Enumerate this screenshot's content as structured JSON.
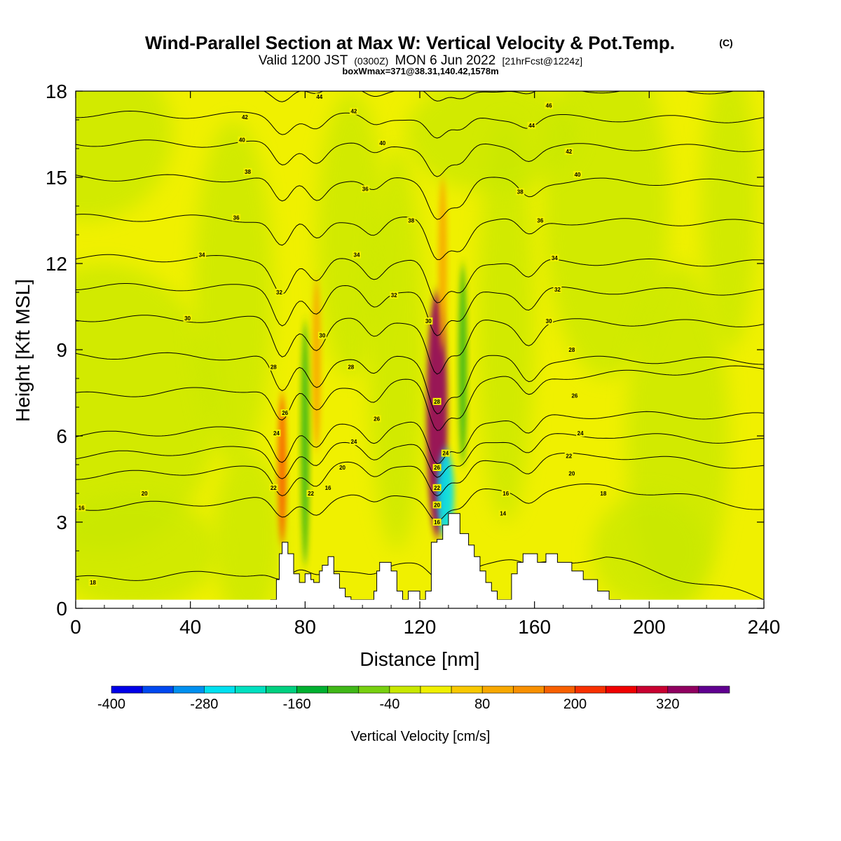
{
  "header": {
    "title": "Wind-Parallel Section at Max W: Vertical Velocity & Pot.Temp.",
    "title_mark": "(C)",
    "valid_prefix": "Valid 1200 JST",
    "valid_utc": "(0300Z)",
    "valid_date": "MON 6 Jun 2022",
    "valid_fcst": "[21hrFcst@1224z]",
    "box_info": "boxWmax=371@38.31,140.42,1578m"
  },
  "chart_data": {
    "type": "heatmap",
    "xlabel": "Distance [nm]",
    "ylabel": "Height [Kft MSL]",
    "xlim": [
      0,
      240
    ],
    "ylim": [
      0,
      18
    ],
    "x_ticks": [
      0,
      40,
      80,
      120,
      160,
      200,
      240
    ],
    "y_ticks": [
      0,
      3,
      6,
      9,
      12,
      15,
      18
    ],
    "background_fill_color": "#f0f000",
    "colorbar": {
      "label": "Vertical Velocity [cm/s]",
      "tick_labels": [
        "-400",
        "-280",
        "-160",
        "-40",
        "80",
        "200",
        "320"
      ],
      "colors": [
        "#0000e8",
        "#0048f0",
        "#0090f0",
        "#00e0f0",
        "#00e0c0",
        "#00d080",
        "#00b030",
        "#40b818",
        "#78d010",
        "#c8e800",
        "#f0f000",
        "#f8c800",
        "#f8a800",
        "#f89000",
        "#f86000",
        "#f83000",
        "#f00000",
        "#c80030",
        "#900060",
        "#600090"
      ]
    },
    "velocity_streaks": [
      {
        "x_center": 72,
        "ylim": [
          2.2,
          7.5
        ],
        "w_peak": 150
      },
      {
        "x_center": 84,
        "ylim": [
          5.5,
          11.5
        ],
        "w_peak": 120
      },
      {
        "x_center": 126,
        "ylim": [
          2.5,
          11.0
        ],
        "w_peak": 371
      },
      {
        "x_center": 128,
        "ylim": [
          9.0,
          15.0
        ],
        "w_peak": 110
      }
    ],
    "downdraft_streaks": [
      {
        "x_center": 80,
        "ylim": [
          1.5,
          10.0
        ],
        "w_peak": -120
      },
      {
        "x_center": 129,
        "ylim": [
          2.5,
          5.5
        ],
        "w_peak": -300
      },
      {
        "x_center": 135,
        "ylim": [
          5.0,
          12.0
        ],
        "w_peak": -100
      }
    ],
    "terrain": [
      [
        68,
        0
      ],
      [
        68,
        0.3
      ],
      [
        70,
        0.3
      ],
      [
        70,
        1.0
      ],
      [
        71,
        1.0
      ],
      [
        71,
        1.9
      ],
      [
        72,
        1.9
      ],
      [
        72,
        2.3
      ],
      [
        74,
        2.3
      ],
      [
        74,
        1.9
      ],
      [
        76,
        1.9
      ],
      [
        76,
        1.2
      ],
      [
        78,
        1.2
      ],
      [
        78,
        0.9
      ],
      [
        80,
        0.9
      ],
      [
        80,
        1.2
      ],
      [
        82,
        1.2
      ],
      [
        82,
        1.0
      ],
      [
        83,
        1.0
      ],
      [
        83,
        0.9
      ],
      [
        85,
        0.9
      ],
      [
        85,
        1.3
      ],
      [
        86,
        1.3
      ],
      [
        86,
        1.5
      ],
      [
        88,
        1.5
      ],
      [
        88,
        1.8
      ],
      [
        90,
        1.8
      ],
      [
        90,
        1.2
      ],
      [
        92,
        1.2
      ],
      [
        92,
        0.7
      ],
      [
        94,
        0.7
      ],
      [
        94,
        0.4
      ],
      [
        96,
        0.4
      ],
      [
        96,
        0.3
      ],
      [
        104,
        0.3
      ],
      [
        104,
        0.6
      ],
      [
        105,
        0.6
      ],
      [
        105,
        1.3
      ],
      [
        106,
        1.3
      ],
      [
        106,
        1.6
      ],
      [
        110,
        1.6
      ],
      [
        110,
        1.3
      ],
      [
        112,
        1.3
      ],
      [
        112,
        0.6
      ],
      [
        114,
        0.6
      ],
      [
        114,
        0.3
      ],
      [
        116,
        0.3
      ],
      [
        116,
        0.6
      ],
      [
        120,
        0.6
      ],
      [
        120,
        0.3
      ],
      [
        122,
        0.3
      ],
      [
        122,
        0.6
      ],
      [
        124,
        0.6
      ],
      [
        124,
        2.3
      ],
      [
        126,
        2.3
      ],
      [
        126,
        2.4
      ],
      [
        128,
        2.4
      ],
      [
        128,
        2.9
      ],
      [
        130,
        2.9
      ],
      [
        130,
        3.3
      ],
      [
        134,
        3.3
      ],
      [
        134,
        2.6
      ],
      [
        137,
        2.6
      ],
      [
        137,
        2.2
      ],
      [
        139,
        2.2
      ],
      [
        139,
        1.8
      ],
      [
        141,
        1.8
      ],
      [
        141,
        1.3
      ],
      [
        143,
        1.3
      ],
      [
        143,
        0.9
      ],
      [
        145,
        0.9
      ],
      [
        145,
        0.6
      ],
      [
        147,
        0.6
      ],
      [
        147,
        0.3
      ],
      [
        152,
        0.3
      ],
      [
        152,
        1.2
      ],
      [
        154,
        1.2
      ],
      [
        154,
        1.6
      ],
      [
        156,
        1.6
      ],
      [
        156,
        1.9
      ],
      [
        161,
        1.9
      ],
      [
        161,
        1.6
      ],
      [
        164,
        1.6
      ],
      [
        164,
        1.9
      ],
      [
        168,
        1.9
      ],
      [
        168,
        1.6
      ],
      [
        173,
        1.6
      ],
      [
        173,
        1.3
      ],
      [
        177,
        1.3
      ],
      [
        177,
        1.0
      ],
      [
        182,
        1.0
      ],
      [
        182,
        0.6
      ],
      [
        186,
        0.6
      ],
      [
        186,
        0.3
      ],
      [
        190,
        0.3
      ],
      [
        190,
        0
      ]
    ],
    "isentropes": [
      {
        "label": "16",
        "y_left": 3.5,
        "dip_scale": 0.4
      },
      {
        "label": "18",
        "y_left": 1.0,
        "dip_scale": 0.2
      },
      {
        "label": "20",
        "y_left": 4.6,
        "dip_scale": 0.55
      },
      {
        "label": "22",
        "y_left": 5.3,
        "dip_scale": 0.6
      },
      {
        "label": "24",
        "y_left": 6.0,
        "dip_scale": 0.7
      },
      {
        "label": "26",
        "y_left": 7.4,
        "dip_scale": 0.75
      },
      {
        "label": "28",
        "y_left": 8.8,
        "dip_scale": 0.8
      },
      {
        "label": "30",
        "y_left": 10.1,
        "dip_scale": 0.8
      },
      {
        "label": "32",
        "y_left": 11.2,
        "dip_scale": 0.75
      },
      {
        "label": "34",
        "y_left": 12.2,
        "dip_scale": 0.7
      },
      {
        "label": "36",
        "y_left": 13.6,
        "dip_scale": 0.6
      },
      {
        "label": "38",
        "y_left": 15.0,
        "dip_scale": 0.55
      },
      {
        "label": "40",
        "y_left": 16.2,
        "dip_scale": 0.45
      },
      {
        "label": "42",
        "y_left": 17.2,
        "dip_scale": 0.35
      },
      {
        "label": "44",
        "y_left": 18.2,
        "dip_scale": 0.25
      }
    ],
    "isentrope_labels": [
      {
        "label": "16",
        "x": 2,
        "y": 3.5
      },
      {
        "label": "18",
        "x": 6,
        "y": 0.9
      },
      {
        "label": "20",
        "x": 24,
        "y": 4.0
      },
      {
        "label": "22",
        "x": 69,
        "y": 4.2
      },
      {
        "label": "24",
        "x": 70,
        "y": 6.1
      },
      {
        "label": "26",
        "x": 73,
        "y": 6.8
      },
      {
        "label": "28",
        "x": 69,
        "y": 8.4
      },
      {
        "label": "30",
        "x": 39,
        "y": 10.1
      },
      {
        "label": "32",
        "x": 71,
        "y": 11.0
      },
      {
        "label": "34",
        "x": 44,
        "y": 12.3
      },
      {
        "label": "36",
        "x": 56,
        "y": 13.6
      },
      {
        "label": "38",
        "x": 60,
        "y": 15.2
      },
      {
        "label": "40",
        "x": 58,
        "y": 16.3
      },
      {
        "label": "42",
        "x": 59,
        "y": 17.1
      },
      {
        "label": "44",
        "x": 85,
        "y": 17.8
      },
      {
        "label": "16",
        "x": 88,
        "y": 4.2
      },
      {
        "label": "20",
        "x": 93,
        "y": 4.9
      },
      {
        "label": "22",
        "x": 82,
        "y": 4.0
      },
      {
        "label": "24",
        "x": 97,
        "y": 5.8
      },
      {
        "label": "26",
        "x": 105,
        "y": 6.6
      },
      {
        "label": "28",
        "x": 96,
        "y": 8.4
      },
      {
        "label": "30",
        "x": 86,
        "y": 9.5
      },
      {
        "label": "32",
        "x": 111,
        "y": 10.9
      },
      {
        "label": "34",
        "x": 98,
        "y": 12.3
      },
      {
        "label": "36",
        "x": 101,
        "y": 14.6
      },
      {
        "label": "38",
        "x": 117,
        "y": 13.5
      },
      {
        "label": "40",
        "x": 107,
        "y": 16.2
      },
      {
        "label": "42",
        "x": 97,
        "y": 17.3
      },
      {
        "label": "16",
        "x": 126,
        "y": 3.0
      },
      {
        "label": "20",
        "x": 126,
        "y": 3.6
      },
      {
        "label": "22",
        "x": 126,
        "y": 4.2
      },
      {
        "label": "24",
        "x": 129,
        "y": 5.4
      },
      {
        "label": "26",
        "x": 126,
        "y": 4.9
      },
      {
        "label": "28",
        "x": 126,
        "y": 7.2
      },
      {
        "label": "30",
        "x": 123,
        "y": 10.0
      },
      {
        "label": "14",
        "x": 149,
        "y": 3.3
      },
      {
        "label": "16",
        "x": 150,
        "y": 4.0
      },
      {
        "label": "20",
        "x": 173,
        "y": 4.7
      },
      {
        "label": "22",
        "x": 172,
        "y": 5.3
      },
      {
        "label": "24",
        "x": 176,
        "y": 6.1
      },
      {
        "label": "26",
        "x": 174,
        "y": 7.4
      },
      {
        "label": "28",
        "x": 173,
        "y": 9.0
      },
      {
        "label": "30",
        "x": 165,
        "y": 10.0
      },
      {
        "label": "32",
        "x": 168,
        "y": 11.1
      },
      {
        "label": "34",
        "x": 167,
        "y": 12.2
      },
      {
        "label": "36",
        "x": 162,
        "y": 13.5
      },
      {
        "label": "38",
        "x": 155,
        "y": 14.5
      },
      {
        "label": "40",
        "x": 175,
        "y": 15.1
      },
      {
        "label": "42",
        "x": 172,
        "y": 15.9
      },
      {
        "label": "44",
        "x": 159,
        "y": 16.8
      },
      {
        "label": "46",
        "x": 165,
        "y": 17.5
      },
      {
        "label": "18",
        "x": 184,
        "y": 4.0
      }
    ]
  }
}
